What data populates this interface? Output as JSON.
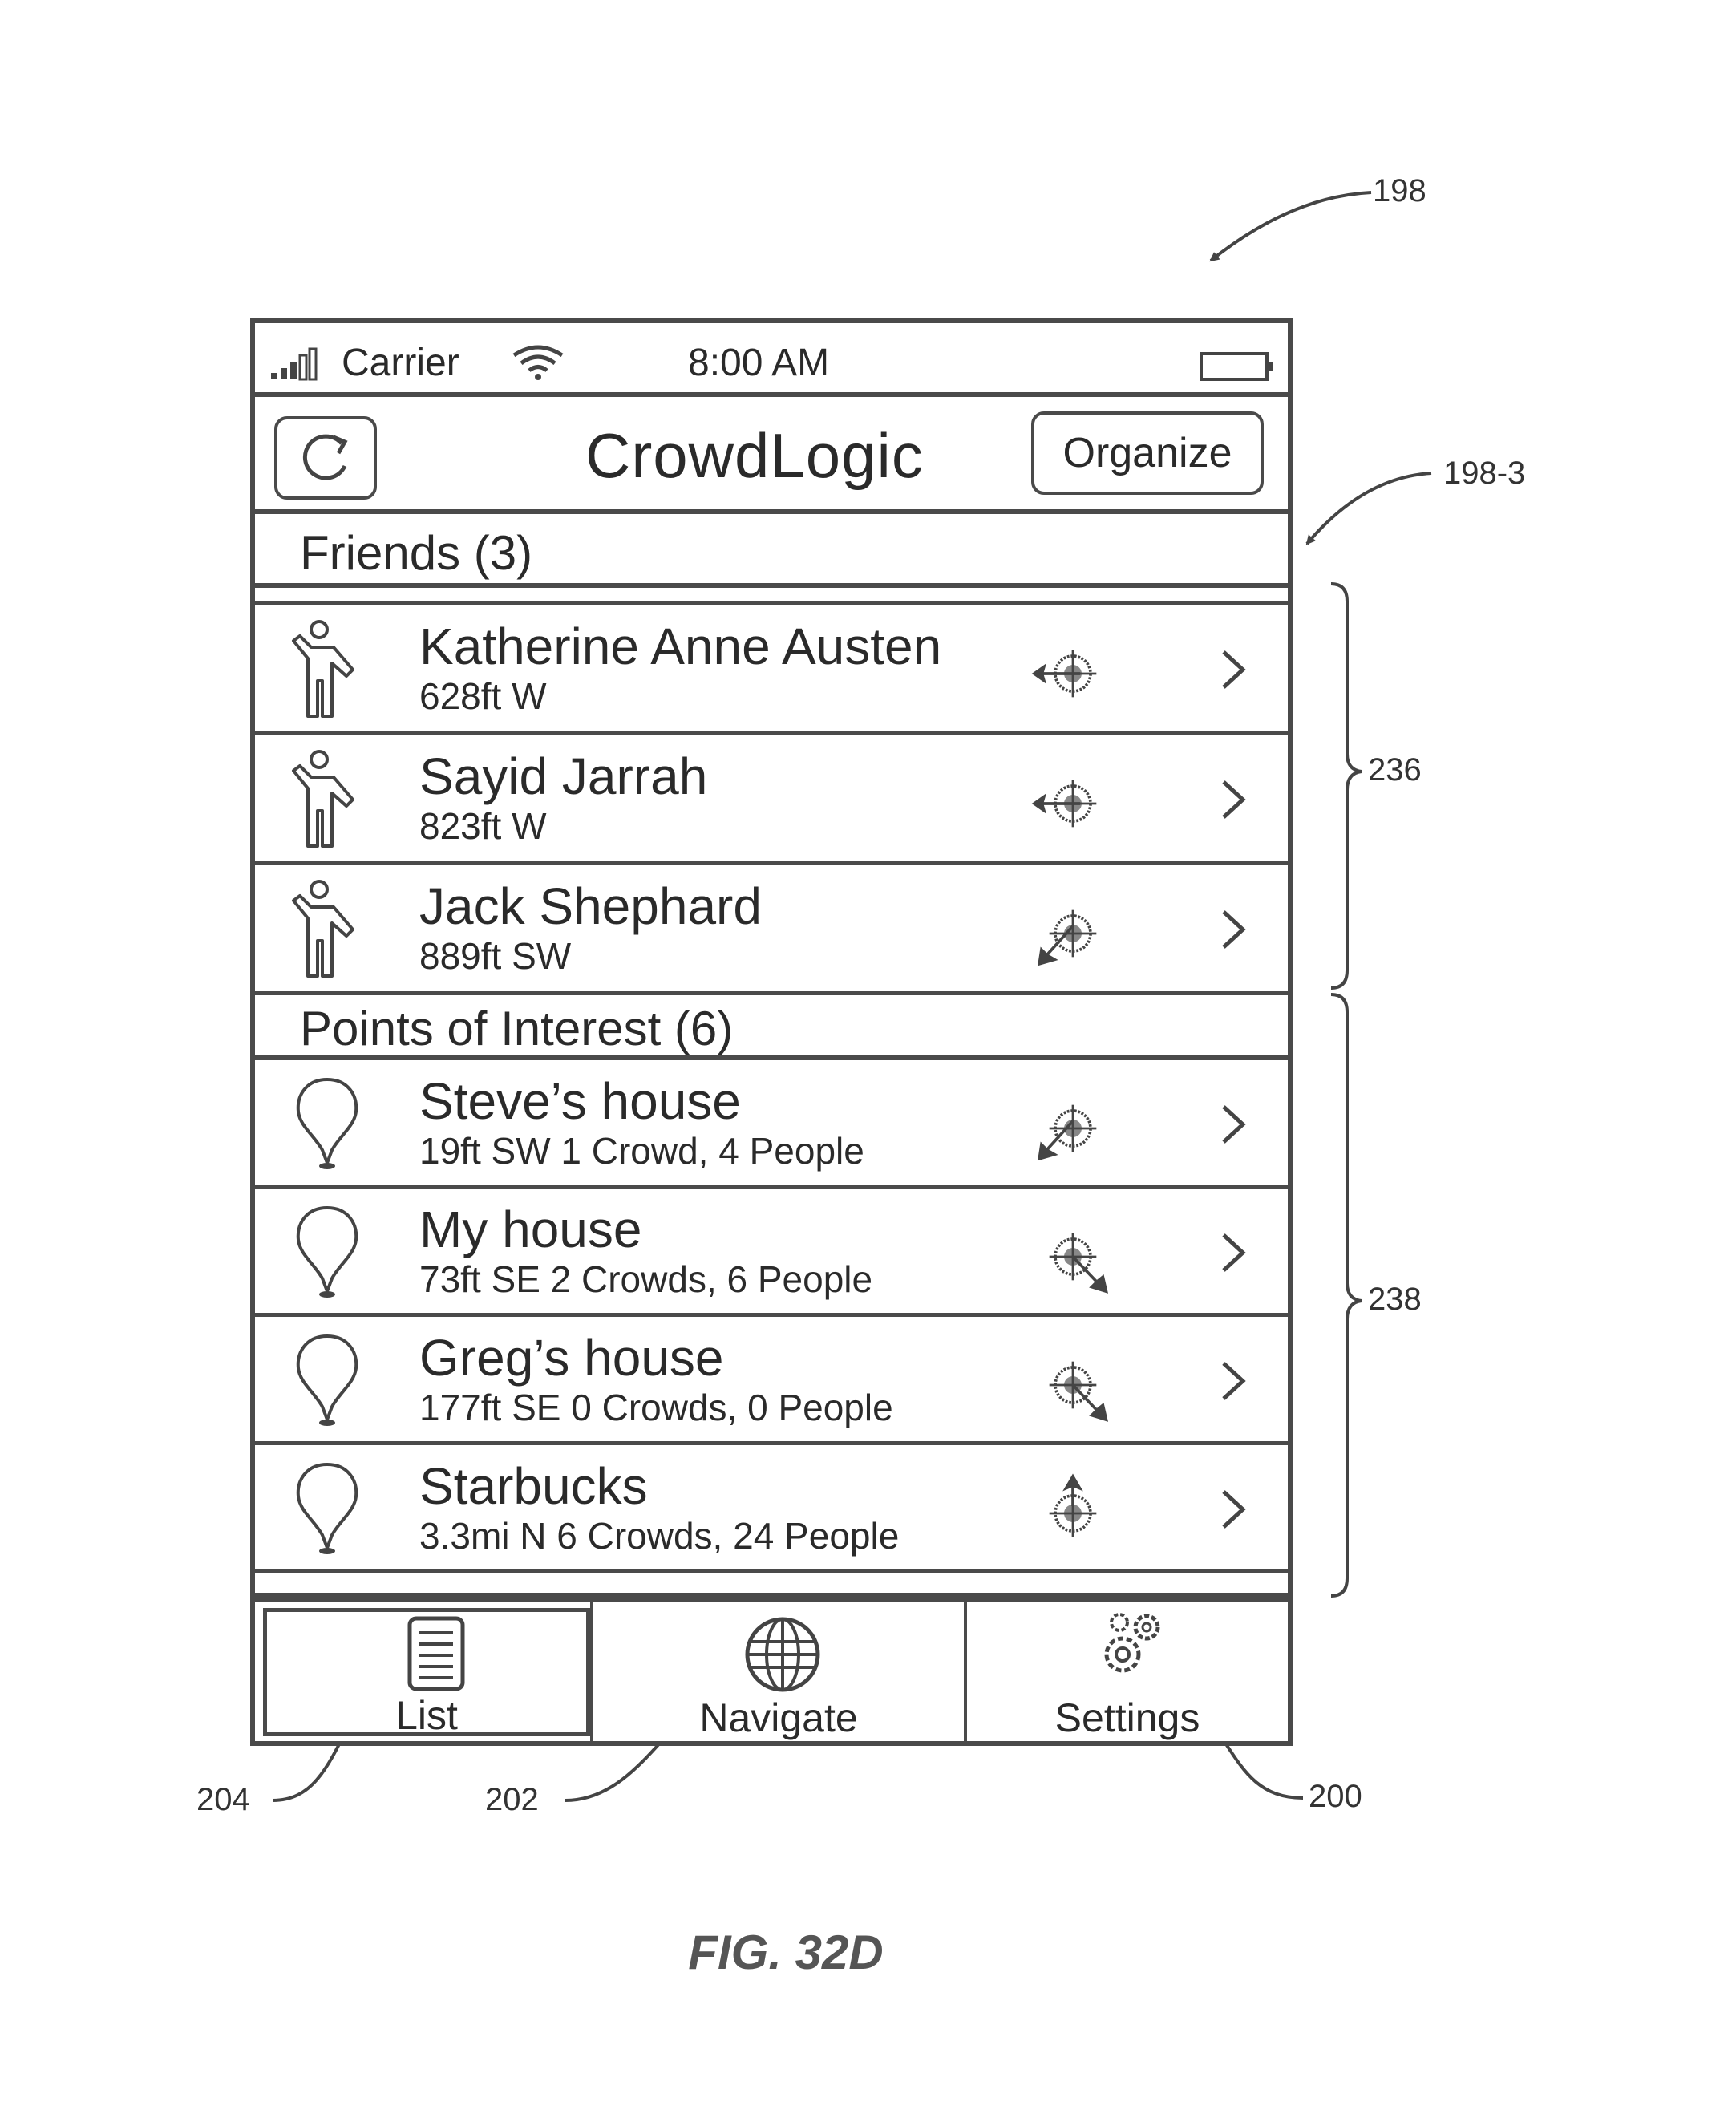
{
  "figure": {
    "caption": "FIG. 32D",
    "refs": {
      "device": "198",
      "screen": "198-3",
      "friends_group": "236",
      "poi_group": "238",
      "tab_list": "204",
      "tab_navigate": "202",
      "tab_settings": "200"
    }
  },
  "status_bar": {
    "carrier": "Carrier",
    "time": "8:00 AM",
    "icons": [
      "signal-icon",
      "wifi-icon",
      "battery-icon"
    ]
  },
  "nav_bar": {
    "refresh_icon": "refresh-icon",
    "title": "CrowdLogic",
    "organize_label": "Organize"
  },
  "friends": {
    "header": "Friends (3)",
    "items": [
      {
        "name": "Katherine Anne Austen",
        "detail": "628ft W",
        "icon": "person-icon",
        "direction": "W"
      },
      {
        "name": "Sayid Jarrah",
        "detail": "823ft W",
        "icon": "person-icon",
        "direction": "W"
      },
      {
        "name": "Jack Shephard",
        "detail": "889ft SW",
        "icon": "person-icon",
        "direction": "SW"
      }
    ]
  },
  "points_of_interest": {
    "header": "Points of Interest (6)",
    "items": [
      {
        "name": "Steve’s house",
        "detail": "19ft SW  1 Crowd, 4 People",
        "icon": "map-pin-icon",
        "direction": "SW"
      },
      {
        "name": "My house",
        "detail": "73ft SE  2 Crowds, 6 People",
        "icon": "map-pin-icon",
        "direction": "SE"
      },
      {
        "name": "Greg’s house",
        "detail": "177ft SE  0 Crowds, 0 People",
        "icon": "map-pin-icon",
        "direction": "SE"
      },
      {
        "name": "Starbucks",
        "detail": "3.3mi N  6 Crowds, 24 People",
        "icon": "map-pin-icon",
        "direction": "N"
      }
    ]
  },
  "tab_bar": {
    "tabs": [
      {
        "label": "List",
        "icon": "list-icon",
        "selected": true
      },
      {
        "label": "Navigate",
        "icon": "globe-icon",
        "selected": false
      },
      {
        "label": "Settings",
        "icon": "gears-icon",
        "selected": false
      }
    ]
  }
}
